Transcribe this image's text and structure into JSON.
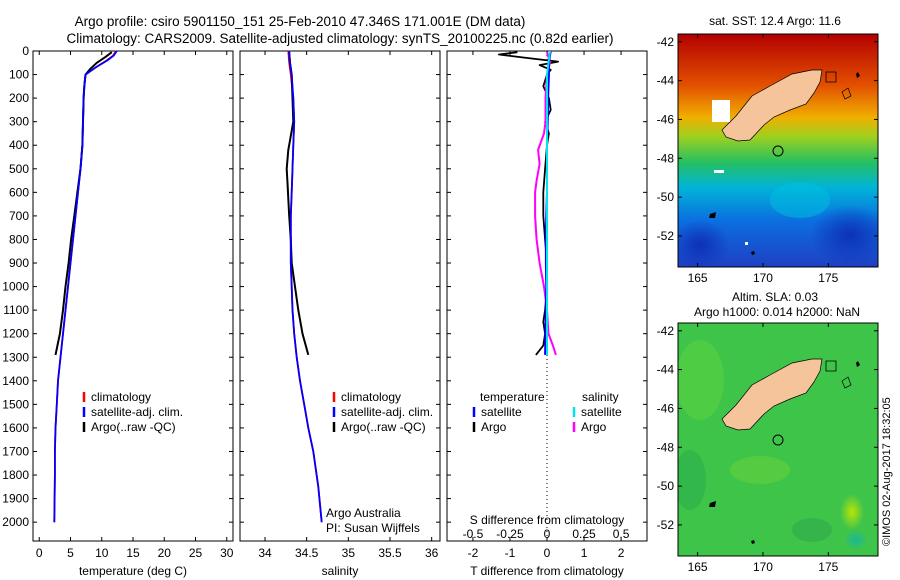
{
  "title": {
    "line1": "Argo profile: csiro 5901150_151 25-Feb-2010 47.346S 171.001E (DM data)",
    "line2": "Climatology: CARS2009. Satellite-adjusted climatology: synTS_20100225.nc (0.82d earlier)"
  },
  "credit": {
    "line1": "Argo Australia",
    "line2": "PI: Susan Wijffels"
  },
  "stamp": "©IMOS 02-Aug-2017 18:32:05",
  "colors": {
    "climatology": "#ff0000",
    "satellite": "#0000ff",
    "argo": "#000000",
    "salinity_satellite": "#00e5ee",
    "salinity_argo": "#ff00ff",
    "land": "#f6c49a"
  },
  "maps": [
    {
      "title": "sat. SST: 12.4 Argo: 11.6",
      "title2": "",
      "field": "sst",
      "x_ticks": [
        "165",
        "170",
        "175"
      ],
      "y_ticks": [
        "-42",
        "-44",
        "-46",
        "-48",
        "-50",
        "-52"
      ],
      "xlim": [
        163.5,
        178.8
      ],
      "ylim": [
        -53.6,
        -41.6
      ],
      "float": {
        "lon": 171.0,
        "lat": -47.35
      }
    },
    {
      "title": "Altim. SLA: 0.03",
      "title2": "Argo h1000: 0.014 h2000: NaN",
      "field": "sla",
      "x_ticks": [
        "165",
        "170",
        "175"
      ],
      "y_ticks": [
        "-42",
        "-44",
        "-46",
        "-48",
        "-50",
        "-52"
      ],
      "xlim": [
        163.5,
        178.8
      ],
      "ylim": [
        -53.6,
        -41.6
      ],
      "float": {
        "lon": 171.0,
        "lat": -47.35
      }
    }
  ],
  "chart_data": [
    {
      "type": "line",
      "panel": "temperature",
      "xlabel": "temperature (deg C)",
      "ylabel": "",
      "xlim": [
        -1,
        31
      ],
      "ylim": [
        0,
        2080
      ],
      "x_ticks": [
        0,
        5,
        10,
        15,
        20,
        25,
        30
      ],
      "y_ticks": [
        0,
        100,
        200,
        300,
        400,
        500,
        600,
        700,
        800,
        900,
        1000,
        1100,
        1200,
        1300,
        1400,
        1500,
        1600,
        1700,
        1800,
        1900,
        2000
      ],
      "y_reversed": true,
      "legend": [
        "climatology",
        "satellite-adj. clim.",
        "Argo(..raw -QC)"
      ],
      "series": [
        {
          "name": "climatology",
          "x": [
            12.3,
            11.8,
            10.8,
            9.0,
            7.4,
            7.2,
            7.1,
            7.0,
            6.9,
            6.6,
            6.2,
            5.8,
            5.4,
            5.0,
            4.6,
            4.2,
            3.8,
            3.4,
            3.0,
            2.8,
            2.6,
            2.5,
            2.5,
            2.4
          ],
          "y": [
            0,
            20,
            40,
            70,
            100,
            150,
            200,
            300,
            400,
            500,
            600,
            700,
            800,
            900,
            1000,
            1100,
            1200,
            1300,
            1400,
            1500,
            1600,
            1700,
            1800,
            2000
          ]
        },
        {
          "name": "satellite-adj. clim.",
          "x": [
            12.4,
            11.9,
            10.9,
            9.0,
            7.4,
            7.2,
            7.1,
            7.0,
            6.9,
            6.6,
            6.2,
            5.8,
            5.4,
            5.0,
            4.6,
            4.2,
            3.8,
            3.4,
            3.0,
            2.8,
            2.6,
            2.5,
            2.5,
            2.4
          ],
          "y": [
            0,
            20,
            40,
            70,
            100,
            150,
            200,
            300,
            400,
            500,
            600,
            700,
            800,
            900,
            1000,
            1100,
            1200,
            1300,
            1400,
            1500,
            1600,
            1700,
            1800,
            2000
          ]
        },
        {
          "name": "Argo(..raw -QC)",
          "x": [
            11.6,
            10.6,
            9.2,
            8.2,
            7.4,
            7.2,
            7.1,
            7.0,
            6.9,
            6.6,
            6.1,
            5.6,
            5.1,
            4.7,
            4.2,
            3.8,
            3.3,
            2.6
          ],
          "y": [
            5,
            25,
            50,
            75,
            100,
            150,
            200,
            300,
            400,
            500,
            600,
            700,
            800,
            900,
            1000,
            1100,
            1200,
            1290
          ]
        }
      ]
    },
    {
      "type": "line",
      "panel": "salinity",
      "xlabel": "salinity",
      "ylabel": "",
      "xlim": [
        33.7,
        36.1
      ],
      "x_ticks": [
        34,
        34.5,
        35,
        35.5,
        36
      ],
      "y_reversed": true,
      "legend": [
        "climatology",
        "satellite-adj. clim.",
        "Argo(..raw -QC)"
      ],
      "series": [
        {
          "name": "climatology",
          "x": [
            34.28,
            34.29,
            34.31,
            34.34,
            34.35,
            34.34,
            34.33,
            34.32,
            34.31,
            34.31,
            34.31,
            34.32,
            34.33,
            34.35,
            34.38,
            34.42,
            34.47,
            34.52,
            34.58,
            34.64,
            34.68
          ],
          "y": [
            0,
            50,
            100,
            200,
            300,
            400,
            500,
            600,
            700,
            800,
            900,
            1000,
            1100,
            1200,
            1300,
            1400,
            1500,
            1600,
            1700,
            1850,
            2000
          ]
        },
        {
          "name": "satellite-adj. clim.",
          "x": [
            34.29,
            34.3,
            34.32,
            34.34,
            34.35,
            34.34,
            34.33,
            34.32,
            34.31,
            34.31,
            34.31,
            34.32,
            34.33,
            34.35,
            34.38,
            34.42,
            34.47,
            34.52,
            34.58,
            34.64,
            34.68
          ],
          "y": [
            0,
            50,
            100,
            200,
            300,
            400,
            500,
            600,
            700,
            800,
            900,
            1000,
            1100,
            1200,
            1300,
            1400,
            1500,
            1600,
            1700,
            1850,
            2000
          ]
        },
        {
          "name": "Argo(..raw -QC)",
          "x": [
            34.29,
            34.3,
            34.32,
            34.33,
            34.34,
            34.3,
            34.28,
            34.26,
            34.27,
            34.29,
            34.31,
            34.32,
            34.36,
            34.4,
            34.45,
            34.52
          ],
          "y": [
            5,
            50,
            100,
            200,
            300,
            380,
            420,
            500,
            560,
            700,
            800,
            900,
            1000,
            1100,
            1200,
            1290
          ]
        }
      ]
    },
    {
      "type": "line",
      "panel": "differences",
      "xlabel": "T difference from climatology",
      "xlabel_top": "S difference from climatology",
      "ylabel": "",
      "xlim": [
        -2.7,
        2.7
      ],
      "x_ticks": [
        -2,
        -1,
        0,
        1,
        2
      ],
      "x_tick_labels": [
        "-2",
        "-1",
        "0",
        "1",
        "2"
      ],
      "s_ticks": [
        -0.5,
        -0.25,
        0,
        0.25,
        0.5
      ],
      "s_tick_labels": [
        "-0.5",
        "-0.25",
        "0",
        "0.25",
        "0.5"
      ],
      "s_scale": 4,
      "y_reversed": true,
      "legend_titles": [
        "temperature",
        "salinity"
      ],
      "legend": [
        "satellite",
        "Argo",
        "satellite",
        "Argo"
      ],
      "series": [
        {
          "name": "satellite",
          "group": "temperature",
          "x": [
            0.1,
            0.05,
            0.05,
            0.03,
            0.02,
            0.0,
            0.0,
            0.0,
            -0.02,
            -0.03,
            -0.03,
            -0.02,
            -0.03,
            -0.05
          ],
          "y": [
            0,
            50,
            100,
            200,
            300,
            400,
            500,
            600,
            700,
            800,
            900,
            1000,
            1100,
            1290
          ]
        },
        {
          "name": "Argo",
          "group": "temperature",
          "x": [
            -0.8,
            -1.3,
            -0.5,
            0.3,
            -0.2,
            0.1,
            0.0,
            -0.1,
            0.05,
            0.1,
            -0.05,
            0.05,
            0.0,
            -0.05,
            -0.1,
            -0.1,
            -0.05,
            0.0,
            0.0,
            -0.05,
            -0.1,
            -0.05,
            -0.1,
            -0.3
          ],
          "y": [
            5,
            15,
            30,
            45,
            60,
            80,
            100,
            150,
            200,
            250,
            300,
            350,
            400,
            500,
            600,
            700,
            800,
            900,
            1000,
            1100,
            1150,
            1200,
            1250,
            1290
          ]
        },
        {
          "name": "satellite",
          "group": "salinity",
          "x": [
            0.02,
            0.01,
            0.0,
            0.0,
            0.0,
            0.0,
            0.0,
            0.0,
            0.0,
            0.0,
            0.0,
            0.0,
            0.0,
            0.0
          ],
          "y": [
            0,
            50,
            100,
            200,
            300,
            400,
            500,
            600,
            700,
            800,
            900,
            1000,
            1100,
            1290
          ]
        },
        {
          "name": "Argo",
          "group": "salinity",
          "x": [
            0.0,
            0.02,
            0.0,
            -0.01,
            -0.01,
            -0.02,
            -0.06,
            -0.05,
            -0.07,
            -0.08,
            -0.08,
            -0.07,
            -0.05,
            -0.02,
            0.0,
            0.01,
            0.04,
            0.06
          ],
          "y": [
            5,
            50,
            100,
            200,
            300,
            350,
            420,
            480,
            550,
            600,
            700,
            800,
            900,
            1000,
            1100,
            1200,
            1250,
            1290
          ]
        }
      ]
    }
  ]
}
